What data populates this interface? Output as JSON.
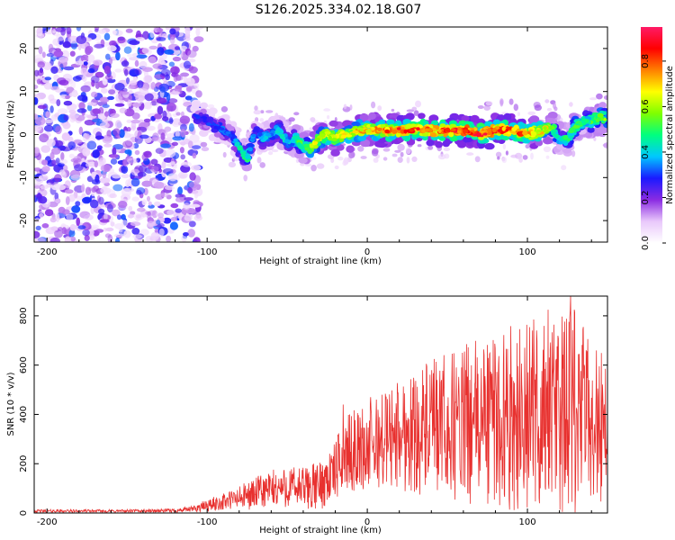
{
  "title": "S126.2025.334.02.18.G07",
  "chart_data": [
    {
      "type": "heatmap",
      "name": "spectrogram",
      "xlabel": "Height of straight line (km)",
      "ylabel": "Frequency (Hz)",
      "xlim": [
        -208,
        150
      ],
      "ylim": [
        -25,
        25
      ],
      "xticks": [
        -200,
        -100,
        0,
        100
      ],
      "yticks": [
        -20,
        -10,
        0,
        10,
        20
      ],
      "colorbar": {
        "label": "Normalized spectral amplitude",
        "range": [
          0.0,
          0.95
        ],
        "ticks": [
          0.0,
          0.2,
          0.4,
          0.6,
          0.8
        ],
        "colormap": [
          "#ffffff",
          "#e9c8fb",
          "#8a2be2",
          "#1a1aff",
          "#00c8ff",
          "#00ff7f",
          "#7fff00",
          "#ffff00",
          "#ff8000",
          "#ff0000",
          "#ff1a66"
        ]
      },
      "noise_region": {
        "x_range": [
          -208,
          -105
        ],
        "freq_range": [
          -25,
          25
        ]
      },
      "ridge": {
        "x": [
          -105,
          -100,
          -95,
          -90,
          -85,
          -80,
          -75,
          -70,
          -65,
          -60,
          -55,
          -50,
          -45,
          -40,
          -35,
          -30,
          -25,
          -20,
          -15,
          -10,
          -5,
          0,
          10,
          20,
          30,
          40,
          50,
          60,
          70,
          80,
          90,
          100,
          110,
          115,
          120,
          125,
          130,
          135,
          140,
          145,
          150
        ],
        "freq": [
          4,
          3,
          2,
          1,
          0,
          -3,
          -6,
          1,
          -1,
          0,
          1,
          -2,
          -1,
          -3,
          -3,
          -1,
          0,
          -1,
          0,
          0,
          1,
          1,
          1,
          1,
          1,
          1,
          1,
          1,
          0,
          1,
          1,
          0,
          1,
          2,
          -1,
          -1,
          2,
          3,
          3,
          4,
          4
        ],
        "amp": [
          0.3,
          0.3,
          0.3,
          0.35,
          0.3,
          0.45,
          0.5,
          0.3,
          0.4,
          0.4,
          0.45,
          0.4,
          0.5,
          0.55,
          0.65,
          0.7,
          0.7,
          0.7,
          0.72,
          0.7,
          0.75,
          0.75,
          0.8,
          0.85,
          0.85,
          0.85,
          0.85,
          0.9,
          0.9,
          0.85,
          0.85,
          0.8,
          0.7,
          0.6,
          0.5,
          0.5,
          0.55,
          0.5,
          0.55,
          0.6,
          0.6
        ]
      }
    },
    {
      "type": "line",
      "name": "snr",
      "xlabel": "Height of straight line (km)",
      "ylabel": "SNR (10 * v/v)",
      "xlim": [
        -208,
        150
      ],
      "ylim": [
        0,
        880
      ],
      "xticks": [
        -200,
        -100,
        0,
        100
      ],
      "yticks": [
        0,
        200,
        400,
        600,
        800
      ],
      "color": "#e8312f",
      "envelope": {
        "x": [
          -208,
          -150,
          -120,
          -110,
          -100,
          -90,
          -80,
          -70,
          -60,
          -50,
          -40,
          -30,
          -20,
          -15,
          -10,
          -5,
          0,
          10,
          20,
          40,
          60,
          80,
          100,
          120,
          130,
          140,
          150
        ],
        "mid": [
          8,
          8,
          10,
          15,
          30,
          45,
          60,
          80,
          95,
          105,
          100,
          110,
          170,
          230,
          250,
          260,
          260,
          300,
          320,
          340,
          360,
          380,
          390,
          400,
          400,
          380,
          350
        ],
        "amp": [
          6,
          6,
          8,
          12,
          25,
          35,
          50,
          65,
          80,
          85,
          90,
          100,
          120,
          150,
          160,
          170,
          180,
          200,
          230,
          280,
          320,
          360,
          390,
          410,
          440,
          350,
          300
        ]
      },
      "peaks": [
        {
          "x": 127,
          "y": 880
        },
        {
          "x": 113,
          "y": 825
        },
        {
          "x": 104,
          "y": 785
        },
        {
          "x": -15,
          "y": 440
        },
        {
          "x": 2,
          "y": 470
        }
      ]
    }
  ]
}
